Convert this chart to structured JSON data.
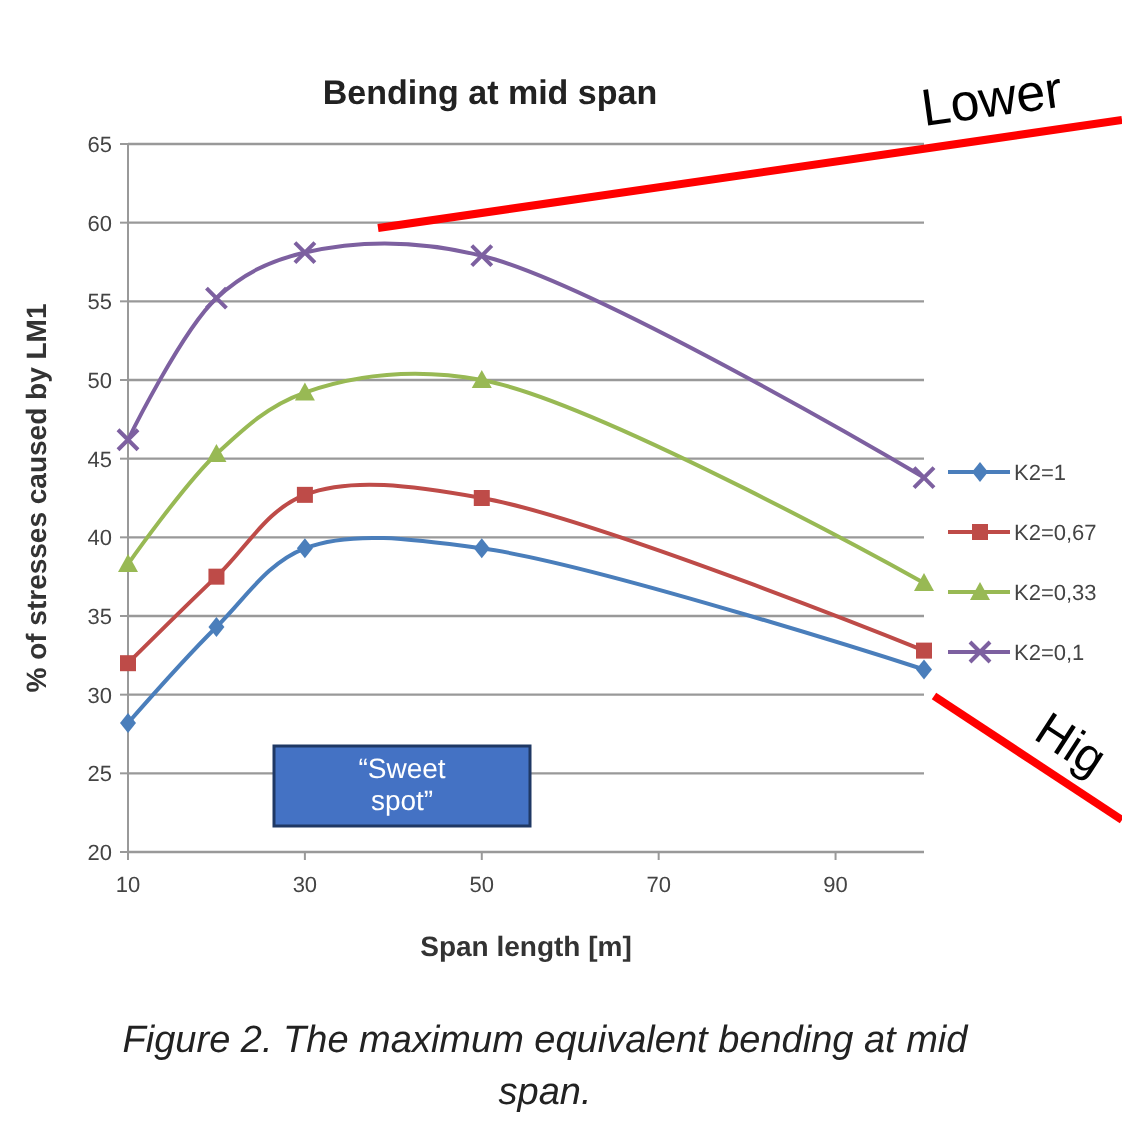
{
  "chart_data": {
    "type": "line",
    "title": "Bending at mid span",
    "xlabel": "Span length [m]",
    "ylabel": "% of stresses caused by LM1",
    "x": [
      10,
      20,
      30,
      50,
      100
    ],
    "xlim": [
      10,
      100
    ],
    "xticks": [
      10,
      30,
      50,
      70,
      90
    ],
    "ylim": [
      20,
      65
    ],
    "yticks": [
      20,
      25,
      30,
      35,
      40,
      45,
      50,
      55,
      60,
      65
    ],
    "grid": "y",
    "legend": "right",
    "series": [
      {
        "name": "K2=1",
        "color": "#4a7ebb",
        "marker": "diamond",
        "values": [
          28.2,
          34.3,
          39.3,
          39.3,
          31.6
        ]
      },
      {
        "name": "K2=0,67",
        "color": "#be4b48",
        "marker": "square",
        "values": [
          32,
          37.5,
          42.7,
          42.5,
          32.8
        ]
      },
      {
        "name": "K2=0,33",
        "color": "#98b954",
        "marker": "triangle",
        "values": [
          38.3,
          45.3,
          49.2,
          50,
          37.1
        ]
      },
      {
        "name": "K2=0,1",
        "color": "#7d60a0",
        "marker": "cross",
        "values": [
          46.2,
          55.2,
          58.1,
          57.9,
          43.8
        ]
      }
    ],
    "annotations": [
      "Lower",
      "Hig",
      "“Sweet spot”",
      "Figure 2. The maximum equivalent bending at mid span."
    ]
  }
}
